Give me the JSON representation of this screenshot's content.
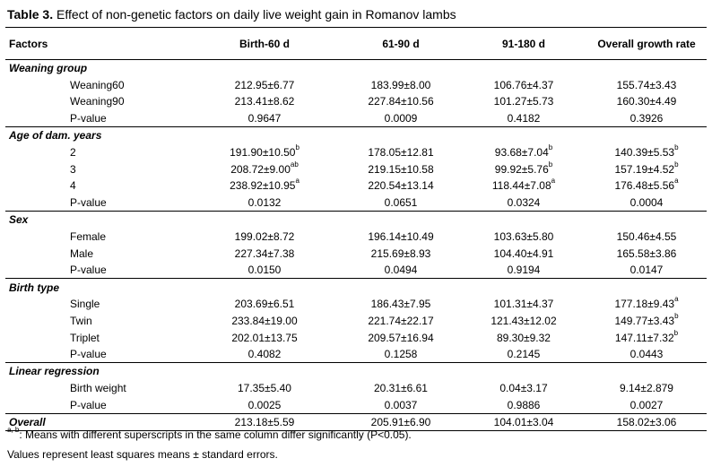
{
  "caption": {
    "label": "Table 3.",
    "text": " Effect of non-genetic factors on daily live weight gain in Romanov lambs"
  },
  "columns": [
    "Factors",
    "Birth-60 d",
    "61-90 d",
    "91-180 d",
    "Overall growth rate"
  ],
  "groups": [
    {
      "name": "Weaning group",
      "rows": [
        {
          "label": "Weaning60",
          "cells": [
            [
              "212.95±6.77",
              ""
            ],
            [
              "183.99±8.00",
              ""
            ],
            [
              "106.76±4.37",
              ""
            ],
            [
              "155.74±3.43",
              ""
            ]
          ]
        },
        {
          "label": "Weaning90",
          "cells": [
            [
              "213.41±8.62",
              ""
            ],
            [
              "227.84±10.56",
              ""
            ],
            [
              "101.27±5.73",
              ""
            ],
            [
              "160.30±4.49",
              ""
            ]
          ]
        },
        {
          "label": "P-value",
          "cells": [
            [
              "0.9647",
              ""
            ],
            [
              "0.0009",
              ""
            ],
            [
              "0.4182",
              ""
            ],
            [
              "0.3926",
              ""
            ]
          ]
        }
      ]
    },
    {
      "name": "Age of dam. years",
      "rows": [
        {
          "label": "2",
          "cells": [
            [
              "191.90±10.50",
              "b"
            ],
            [
              "178.05±12.81",
              ""
            ],
            [
              "93.68±7.04",
              "b"
            ],
            [
              "140.39±5.53",
              "b"
            ]
          ]
        },
        {
          "label": "3",
          "cells": [
            [
              "208.72±9.00",
              "ab"
            ],
            [
              "219.15±10.58",
              ""
            ],
            [
              "99.92±5.76",
              "b"
            ],
            [
              "157.19±4.52",
              "b"
            ]
          ]
        },
        {
          "label": "4",
          "cells": [
            [
              "238.92±10.95",
              "a"
            ],
            [
              "220.54±13.14",
              ""
            ],
            [
              "118.44±7.08",
              "a"
            ],
            [
              "176.48±5.56",
              "a"
            ]
          ]
        },
        {
          "label": "P-value",
          "cells": [
            [
              "0.0132",
              ""
            ],
            [
              "0.0651",
              ""
            ],
            [
              "0.0324",
              ""
            ],
            [
              "0.0004",
              ""
            ]
          ]
        }
      ]
    },
    {
      "name": "Sex",
      "rows": [
        {
          "label": "Female",
          "cells": [
            [
              "199.02±8.72",
              ""
            ],
            [
              "196.14±10.49",
              ""
            ],
            [
              "103.63±5.80",
              ""
            ],
            [
              "150.46±4.55",
              ""
            ]
          ]
        },
        {
          "label": "Male",
          "cells": [
            [
              "227.34±7.38",
              ""
            ],
            [
              "215.69±8.93",
              ""
            ],
            [
              "104.40±4.91",
              ""
            ],
            [
              "165.58±3.86",
              ""
            ]
          ]
        },
        {
          "label": "P-value",
          "cells": [
            [
              "0.0150",
              ""
            ],
            [
              "0.0494",
              ""
            ],
            [
              "0.9194",
              ""
            ],
            [
              "0.0147",
              ""
            ]
          ]
        }
      ]
    },
    {
      "name": "Birth type",
      "rows": [
        {
          "label": "Single",
          "cells": [
            [
              "203.69±6.51",
              ""
            ],
            [
              "186.43±7.95",
              ""
            ],
            [
              "101.31±4.37",
              ""
            ],
            [
              "177.18±9.43",
              "a"
            ]
          ]
        },
        {
          "label": "Twin",
          "cells": [
            [
              "233.84±19.00",
              ""
            ],
            [
              "221.74±22.17",
              ""
            ],
            [
              "121.43±12.02",
              ""
            ],
            [
              "149.77±3.43",
              "b"
            ]
          ]
        },
        {
          "label": "Triplet",
          "cells": [
            [
              "202.01±13.75",
              ""
            ],
            [
              "209.57±16.94",
              ""
            ],
            [
              "89.30±9.32",
              ""
            ],
            [
              "147.11±7.32",
              "b"
            ]
          ]
        },
        {
          "label": "P-value",
          "cells": [
            [
              "0.4082",
              ""
            ],
            [
              "0.1258",
              ""
            ],
            [
              "0.2145",
              ""
            ],
            [
              "0.0443",
              ""
            ]
          ]
        }
      ]
    },
    {
      "name": "Linear regression",
      "rows": [
        {
          "label": "Birth weight",
          "cells": [
            [
              "17.35±5.40",
              ""
            ],
            [
              "20.31±6.61",
              ""
            ],
            [
              "0.04±3.17",
              ""
            ],
            [
              "9.14±2.879",
              ""
            ]
          ]
        },
        {
          "label": "P-value",
          "cells": [
            [
              "0.0025",
              ""
            ],
            [
              "0.0037",
              ""
            ],
            [
              "0.9886",
              ""
            ],
            [
              "0.0027",
              ""
            ]
          ]
        }
      ]
    }
  ],
  "overall": {
    "label": "Overall",
    "cells": [
      "213.18±5.59",
      "205.91±6.90",
      "104.01±3.04",
      "158.02±3.06"
    ]
  },
  "footnotes": {
    "sup": "a, b",
    "note1": ": Means with different superscripts in the same column differ significantly (P<0.05).",
    "note2": "Values represent least squares means ± standard errors."
  }
}
